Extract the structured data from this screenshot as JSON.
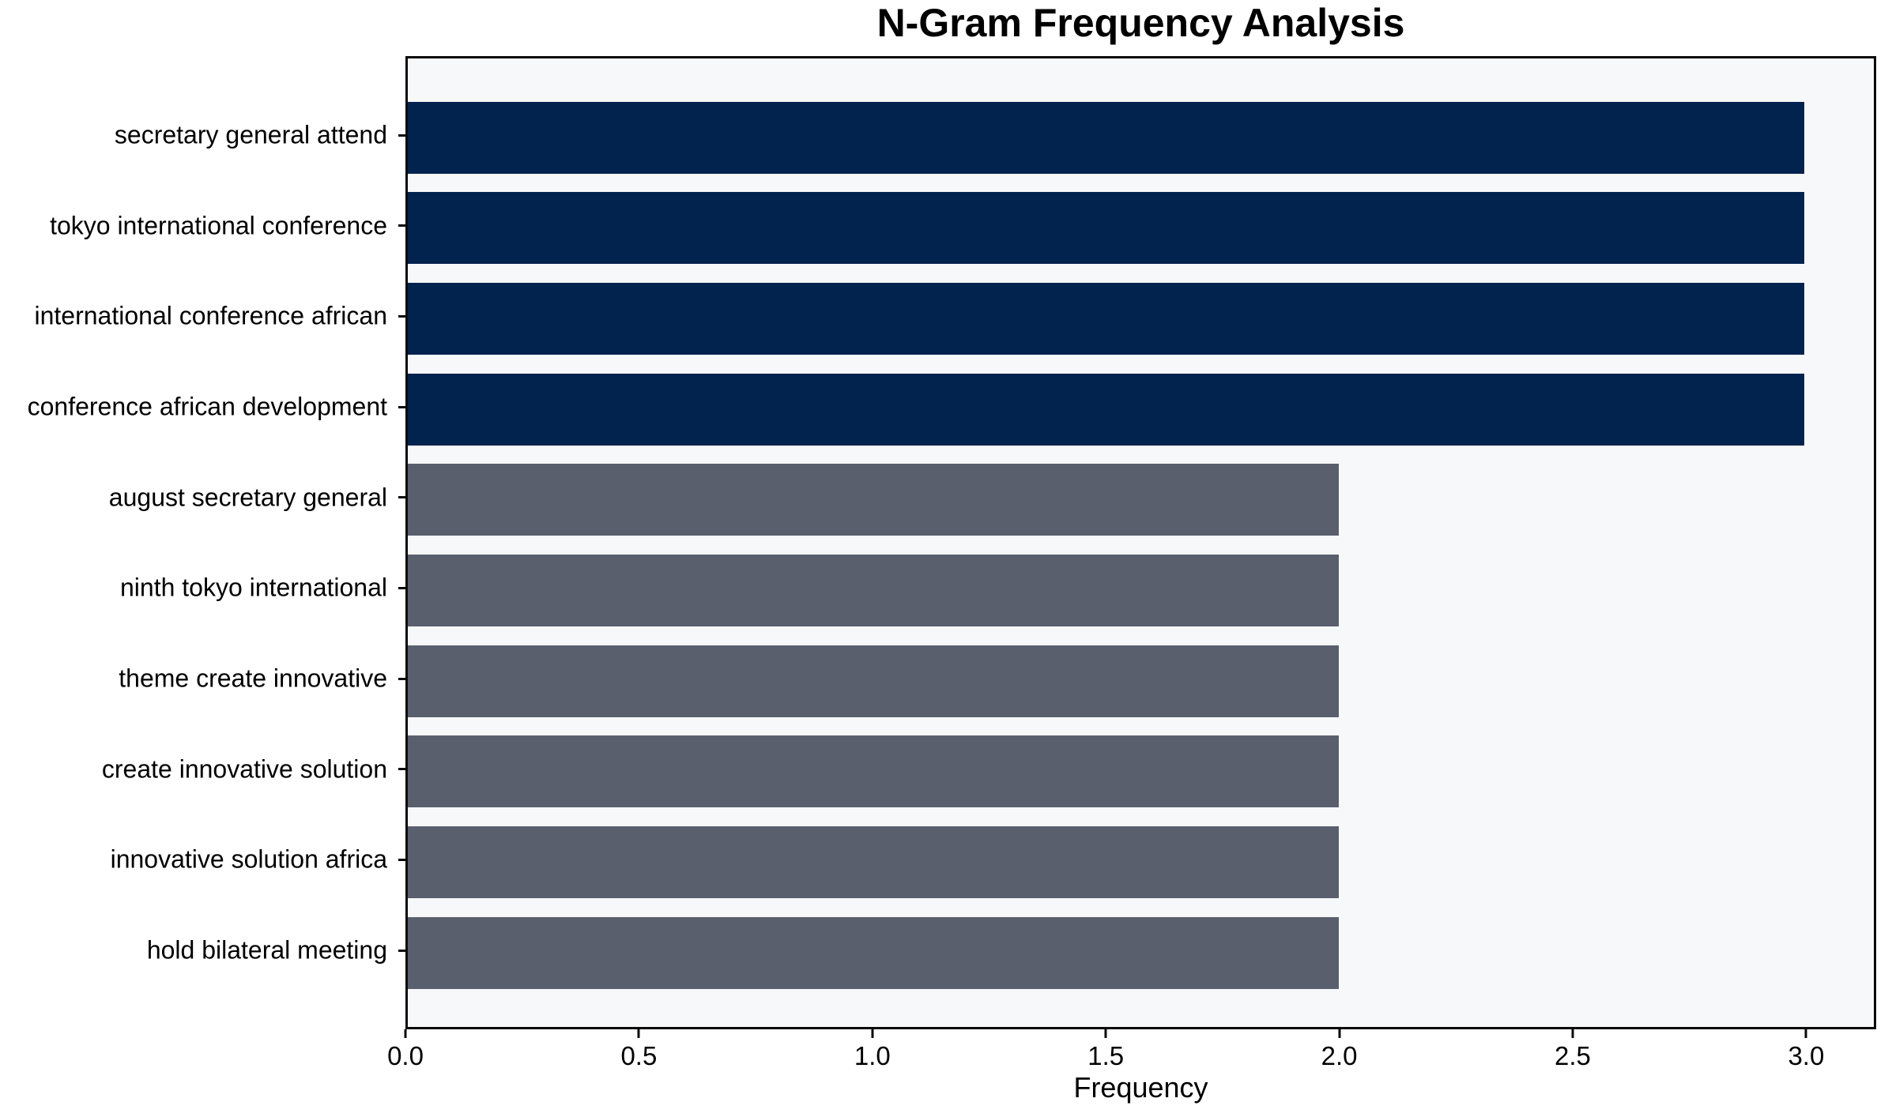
{
  "chart_data": {
    "type": "bar",
    "orientation": "horizontal",
    "title": "N-Gram Frequency Analysis",
    "xlabel": "Frequency",
    "ylabel": "",
    "categories": [
      "secretary general attend",
      "tokyo international conference",
      "international conference african",
      "conference african development",
      "august secretary general",
      "ninth tokyo international",
      "theme create innovative",
      "create innovative solution",
      "innovative solution africa",
      "hold bilateral meeting"
    ],
    "values": [
      3,
      3,
      3,
      3,
      2,
      2,
      2,
      2,
      2,
      2
    ],
    "bar_colors": [
      "#03234f",
      "#03234f",
      "#03234f",
      "#03234f",
      "#5a5f6e",
      "#5a5f6e",
      "#5a5f6e",
      "#5a5f6e",
      "#5a5f6e",
      "#5a5f6e"
    ],
    "xlim": [
      0,
      3.15
    ],
    "x_ticks": [
      0.0,
      0.5,
      1.0,
      1.5,
      2.0,
      2.5,
      3.0
    ],
    "x_tick_labels": [
      "0.0",
      "0.5",
      "1.0",
      "1.5",
      "2.0",
      "2.5",
      "3.0"
    ],
    "grid": false,
    "legend": null,
    "colors": {
      "bar_high": "#03234f",
      "bar_low": "#5a5f6e",
      "plot_background": "#f7f8f9",
      "figure_background": "#ffffff",
      "axis": "#0a0a0a",
      "text": "#000000"
    }
  }
}
